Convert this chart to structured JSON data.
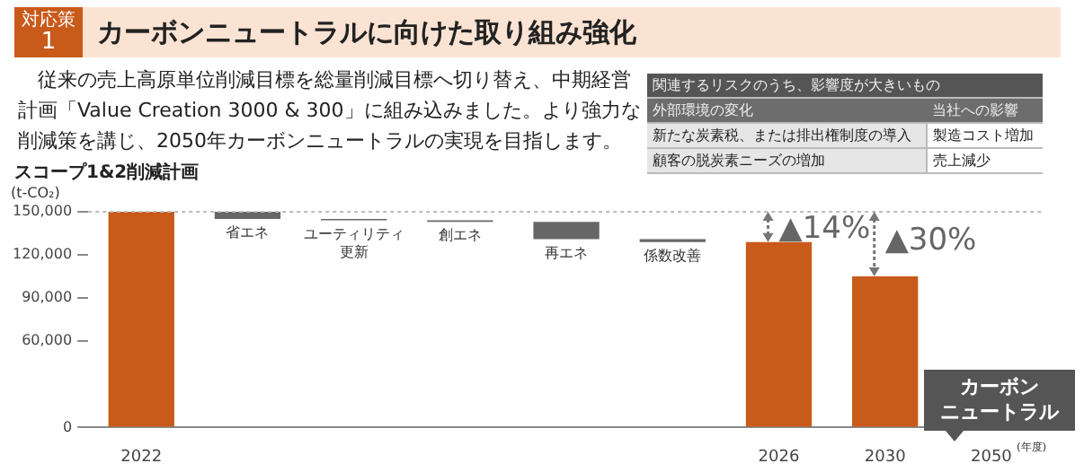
{
  "chart_data": {
    "type": "bar",
    "title": "カーボンニュートラルに向けた取り組み強化",
    "subtitle": "スコープ1&2削減計画",
    "ylabel": "(t-CO₂)",
    "xlabel": "(年度)",
    "categories": [
      "2022",
      "省エネ",
      "ユーティリティ更新",
      "創エネ",
      "再エネ",
      "係数改善",
      "2026",
      "2030",
      "2050"
    ],
    "values": [
      150000,
      5000,
      1000,
      1000,
      12000,
      2000,
      129000,
      105000,
      null
    ],
    "base": [
      null,
      145000,
      144000,
      143000,
      131000,
      129000,
      null,
      null,
      null
    ],
    "colors": [
      "#c85a1a",
      "#666666",
      "#666666",
      "#666666",
      "#666666",
      "#666666",
      "#c85a1a",
      "#c85a1a",
      "#c85a1a"
    ],
    "ylim": [
      0,
      150000
    ],
    "yticks": [
      0,
      {
        "value": 60000,
        "label": "60,000"
      },
      {
        "value": 90000,
        "label": "90,000"
      },
      {
        "value": 120000,
        "label": "120,000"
      },
      {
        "value": 150000,
        "label": "150,000"
      }
    ],
    "ref_lines": [
      {
        "axis": "y",
        "value": 150000,
        "color": "#bbbbbb",
        "line_style": "dotted"
      }
    ],
    "legend": false,
    "annotations": [
      "対応策",
      "1",
      "　従来の売上高原単位削減目標を総量削減目標へ切り替え、中期経営計画「Value Creation 3000 & 300」に組み込みました。より強力な削減策を講じ、2050年カーボンニュートラルの実現を目指します。",
      "関連するリスクのうち、影響度が大きいもの",
      "外部環境の変化",
      "当社への影響",
      "新たな炭素税、または排出権制度の導入",
      "製造コスト増加",
      "顧客の脱炭素ニーズの増加",
      "売上減少",
      {
        "text": "▲14%",
        "x": "2026",
        "y": 129000
      },
      {
        "text": "▲30%",
        "x": "2030",
        "y": 105000
      },
      "カーボン",
      "ニュートラル"
    ]
  }
}
